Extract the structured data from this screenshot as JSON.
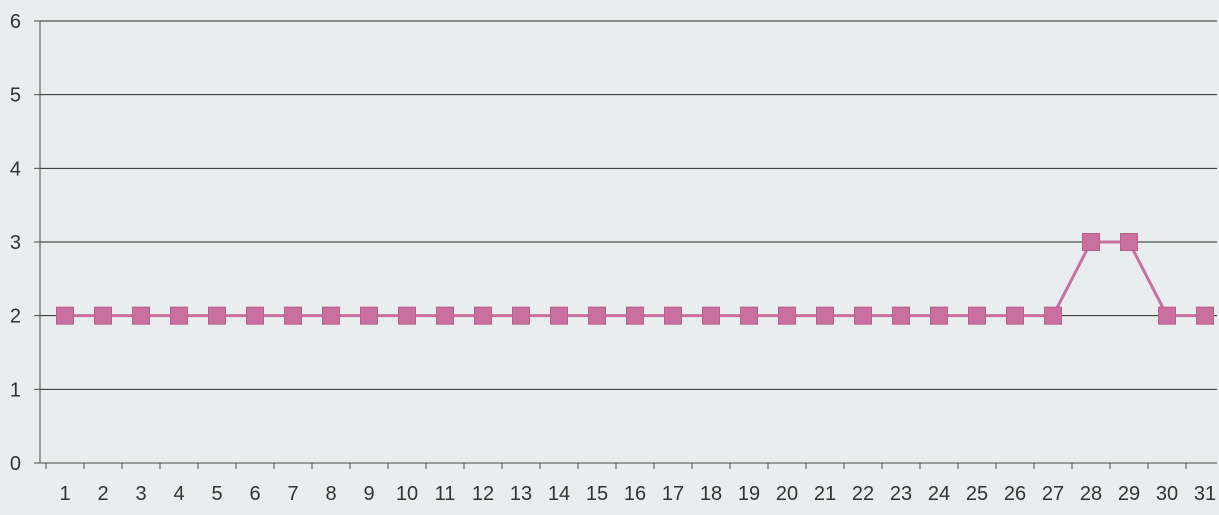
{
  "chart_data": {
    "type": "line",
    "title": "",
    "xlabel": "",
    "ylabel": "",
    "categories": [
      "1",
      "2",
      "3",
      "4",
      "5",
      "6",
      "7",
      "8",
      "9",
      "10",
      "11",
      "12",
      "13",
      "14",
      "15",
      "16",
      "17",
      "18",
      "19",
      "20",
      "21",
      "22",
      "23",
      "24",
      "25",
      "26",
      "27",
      "28",
      "29",
      "30",
      "31"
    ],
    "y_ticks": [
      "0",
      "1",
      "2",
      "3",
      "4",
      "5",
      "6"
    ],
    "ylim": [
      0,
      6
    ],
    "grid": true,
    "legend": "none",
    "series": [
      {
        "values": [
          2,
          2,
          2,
          2,
          2,
          2,
          2,
          2,
          2,
          2,
          2,
          2,
          2,
          2,
          2,
          2,
          2,
          2,
          2,
          2,
          2,
          2,
          2,
          2,
          2,
          2,
          2,
          3,
          3,
          2,
          2
        ],
        "color": "#c9709f",
        "marker": "square"
      }
    ],
    "colors": {
      "background": "#e9edee",
      "gridline": "#2b2b2b",
      "axis": "#4a4a4a",
      "tick_label": "#333333"
    }
  }
}
